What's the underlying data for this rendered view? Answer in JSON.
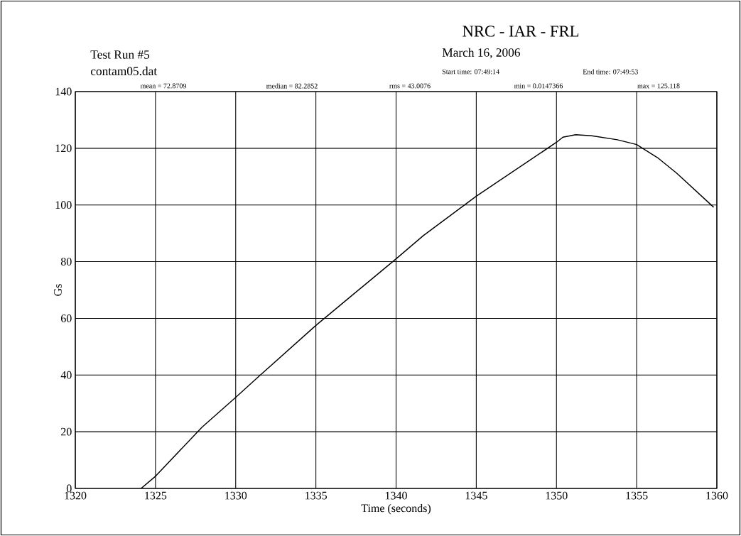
{
  "chart_data": {
    "type": "line",
    "title": "NRC - IAR - FRL",
    "subtitle": "March 16, 2006",
    "xlabel": "Time (seconds)",
    "ylabel": "Gs",
    "annotations": [
      "Test Run #5",
      "contam05.dat",
      "Start time: 07:49:14",
      "End time: 07:49:53",
      "mean = 72.8709",
      "median = 82.2852",
      "rms = 43.0076",
      "min = 0.0147366",
      "max = 125.118"
    ],
    "xlim": [
      1320,
      1360
    ],
    "ylim": [
      0,
      140
    ],
    "xticks": [
      1320,
      1325,
      1330,
      1335,
      1340,
      1345,
      1350,
      1355,
      1360
    ],
    "yticks": [
      0,
      20,
      40,
      60,
      80,
      100,
      120,
      140
    ],
    "grid": true,
    "series": [
      {
        "color": "#000000",
        "x": [
          1324.1,
          1325,
          1327.9,
          1330,
          1331.5,
          1335,
          1340,
          1341.7,
          1345,
          1350,
          1350.4,
          1351.2,
          1352.2,
          1353.8,
          1355,
          1356.3,
          1357.5,
          1359.8
        ],
        "values": [
          0,
          4.3,
          21.6,
          32.1,
          39.8,
          57.5,
          81,
          89.2,
          103.1,
          122.1,
          123.9,
          124.8,
          124.4,
          123,
          121.3,
          116.7,
          111.2,
          99.2
        ]
      }
    ]
  }
}
